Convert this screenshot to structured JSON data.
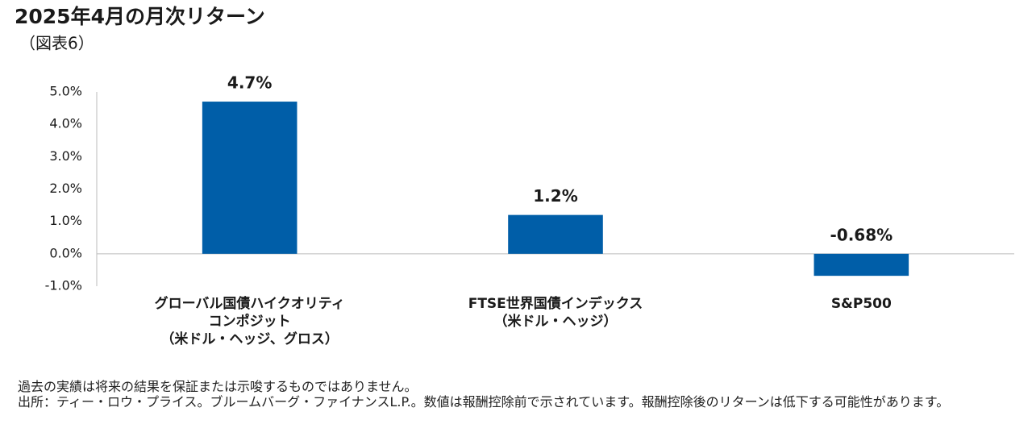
{
  "chart_data": {
    "type": "bar",
    "title": "2025年4月の月次リターン",
    "subtitle": "（図表6）",
    "categories": [
      [
        "グローバル国債ハイクオリティ",
        "コンポジット",
        "（米ドル・ヘッジ、グロス）"
      ],
      [
        "FTSE世界国債インデックス",
        "（米ドル・ヘッジ）"
      ],
      [
        "S&P500"
      ]
    ],
    "values": [
      4.7,
      1.2,
      -0.68
    ],
    "value_labels": [
      "4.7%",
      "1.2%",
      "-0.68%"
    ],
    "color": "#005ea8",
    "ylim": [
      -1,
      5
    ],
    "yticks": [
      {
        "value": -1,
        "label": "-1.0%"
      },
      {
        "value": 0,
        "label": "0.0%"
      },
      {
        "value": 1,
        "label": "1.0%"
      },
      {
        "value": 2,
        "label": "2.0%"
      },
      {
        "value": 3,
        "label": "3.0%"
      },
      {
        "value": 4,
        "label": "4.0%"
      },
      {
        "value": 5,
        "label": "5.0%"
      }
    ],
    "grid": false,
    "notes": [
      "過去の実績は将来の結果を保証または示唆するものではありません。",
      "出所：ティー・ロウ・プライス。ブルームバーグ・ファイナンスL.P.。数値は報酬控除前で示されています。報酬控除後のリターンは低下する可能性があります。"
    ]
  }
}
